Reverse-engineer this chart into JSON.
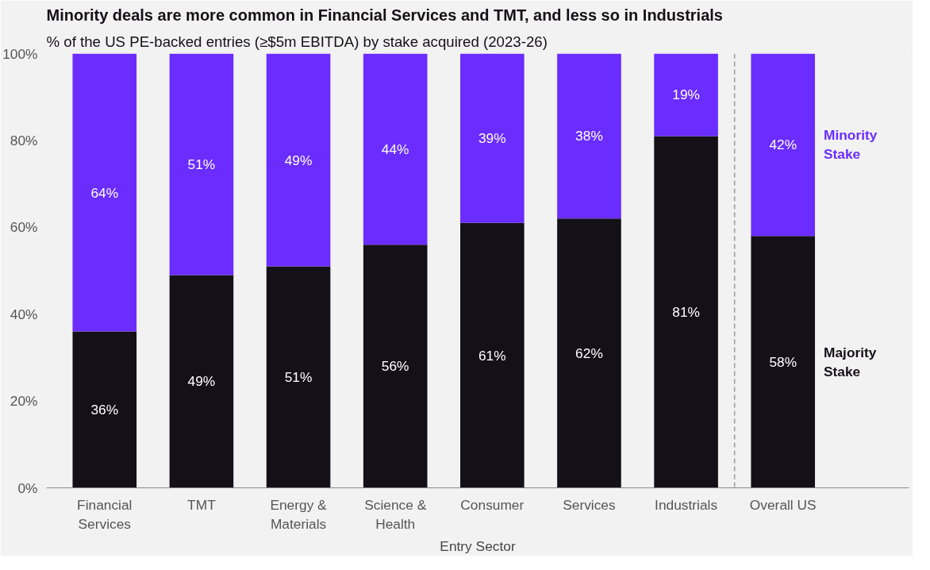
{
  "chart_data": {
    "type": "bar",
    "stacked": true,
    "title": "Minority deals are more common in Financial Services and TMT, and less so in Industrials",
    "subtitle": "% of the US PE-backed entries (≥$5m EBITDA) by stake acquired (2023-26)",
    "xlabel": "Entry Sector",
    "categories": [
      "Financial Services",
      "TMT",
      "Energy & Materials",
      "Science & Health",
      "Consumer",
      "Services",
      "Industrials",
      "Overall US"
    ],
    "series": [
      {
        "name": "Majority Stake",
        "color": "#141018",
        "values": [
          36,
          49,
          51,
          56,
          61,
          62,
          81,
          58
        ],
        "value_labels": [
          "36%",
          "49%",
          "51%",
          "56%",
          "61%",
          "62%",
          "81%",
          "58%"
        ]
      },
      {
        "name": "Minority Stake",
        "color": "#6a2cff",
        "values": [
          64,
          51,
          49,
          44,
          39,
          38,
          19,
          42
        ],
        "value_labels": [
          "64%",
          "51%",
          "49%",
          "44%",
          "39%",
          "38%",
          "19%",
          "42%"
        ]
      }
    ],
    "ylim": [
      0,
      100
    ],
    "yticks": [
      {
        "value": 0,
        "label": "0%"
      },
      {
        "value": 20,
        "label": "20%"
      },
      {
        "value": 40,
        "label": "40%"
      },
      {
        "value": 60,
        "label": "60%"
      },
      {
        "value": 80,
        "label": "80%"
      },
      {
        "value": 100,
        "label": "100%"
      }
    ],
    "grid": false,
    "legend": "right"
  }
}
